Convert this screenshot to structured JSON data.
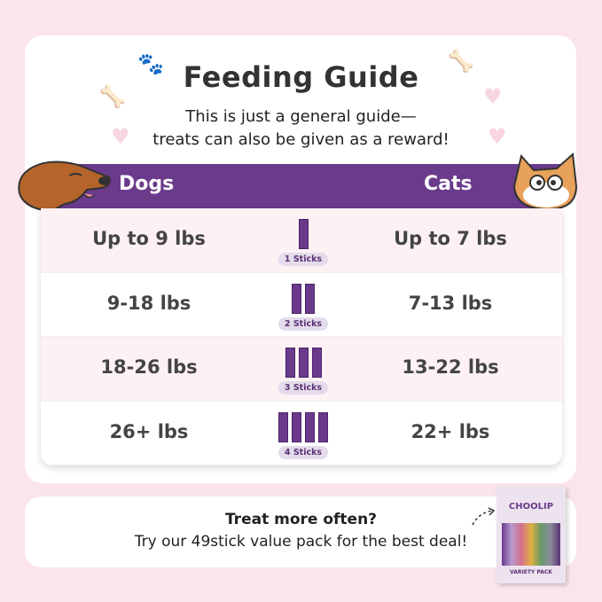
{
  "title": "Feeding Guide",
  "subtitle": [
    "This is just a general guide—",
    "treats can also be given as a reward!"
  ],
  "headers": {
    "dogs": "Dogs",
    "cats": "Cats"
  },
  "rows": [
    {
      "dogs": "Up to 9 lbs",
      "sticks": 1,
      "label": "1 Sticks",
      "cats": "Up to 7 lbs"
    },
    {
      "dogs": "9-18 lbs",
      "sticks": 2,
      "label": "2 Sticks",
      "cats": "7-13 lbs"
    },
    {
      "dogs": "18-26 lbs",
      "sticks": 3,
      "label": "3 Sticks",
      "cats": "13-22 lbs"
    },
    {
      "dogs": "26+ lbs",
      "sticks": 4,
      "label": "4 Sticks",
      "cats": "22+ lbs"
    }
  ],
  "stick_brand": "CHOOLIP",
  "footer": {
    "line1": "Treat more often?",
    "line2": "Try our 49stick value pack for the best deal!"
  },
  "product": {
    "brand": "CHOOLIP",
    "name": "VARIETY PACK"
  },
  "colors": {
    "accent": "#6a3a8b",
    "background": "#fbe4ea",
    "row_alt": "#fdf1f4",
    "badge": "#e4dbeb"
  }
}
